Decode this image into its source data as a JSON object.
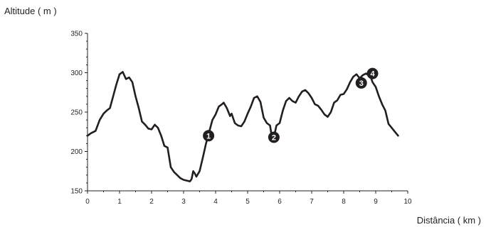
{
  "chart_data": {
    "type": "line",
    "title": "",
    "ylabel": "Altitude ( m )",
    "xlabel": "Distância ( km )",
    "xlim": [
      0,
      10
    ],
    "ylim": [
      150,
      350
    ],
    "x_ticks": [
      0,
      1,
      2,
      3,
      4,
      5,
      6,
      7,
      8,
      9,
      10
    ],
    "y_ticks": [
      150,
      200,
      250,
      300,
      350
    ],
    "grid": false,
    "series": [
      {
        "points": [
          [
            0.0,
            220
          ],
          [
            0.1,
            223
          ],
          [
            0.25,
            226
          ],
          [
            0.38,
            240
          ],
          [
            0.5,
            248
          ],
          [
            0.6,
            252
          ],
          [
            0.7,
            255
          ],
          [
            0.8,
            270
          ],
          [
            0.9,
            285
          ],
          [
            1.0,
            298
          ],
          [
            1.1,
            301
          ],
          [
            1.2,
            292
          ],
          [
            1.3,
            294
          ],
          [
            1.4,
            288
          ],
          [
            1.5,
            270
          ],
          [
            1.6,
            255
          ],
          [
            1.7,
            238
          ],
          [
            1.8,
            234
          ],
          [
            1.9,
            229
          ],
          [
            2.0,
            228
          ],
          [
            2.1,
            234
          ],
          [
            2.2,
            230
          ],
          [
            2.3,
            220
          ],
          [
            2.4,
            207
          ],
          [
            2.5,
            205
          ],
          [
            2.6,
            180
          ],
          [
            2.7,
            174
          ],
          [
            2.8,
            170
          ],
          [
            2.9,
            166
          ],
          [
            3.0,
            164
          ],
          [
            3.1,
            163
          ],
          [
            3.2,
            162
          ],
          [
            3.25,
            165
          ],
          [
            3.3,
            175
          ],
          [
            3.35,
            172
          ],
          [
            3.4,
            168
          ],
          [
            3.5,
            175
          ],
          [
            3.6,
            192
          ],
          [
            3.7,
            210
          ],
          [
            3.8,
            225
          ],
          [
            3.9,
            240
          ],
          [
            4.0,
            247
          ],
          [
            4.1,
            257
          ],
          [
            4.2,
            260
          ],
          [
            4.25,
            262
          ],
          [
            4.35,
            255
          ],
          [
            4.45,
            245
          ],
          [
            4.5,
            248
          ],
          [
            4.6,
            236
          ],
          [
            4.7,
            233
          ],
          [
            4.8,
            232
          ],
          [
            4.9,
            238
          ],
          [
            5.0,
            248
          ],
          [
            5.1,
            257
          ],
          [
            5.2,
            268
          ],
          [
            5.3,
            270
          ],
          [
            5.4,
            263
          ],
          [
            5.5,
            243
          ],
          [
            5.6,
            236
          ],
          [
            5.7,
            233
          ],
          [
            5.75,
            220
          ],
          [
            5.82,
            218
          ],
          [
            5.9,
            233
          ],
          [
            6.0,
            236
          ],
          [
            6.1,
            252
          ],
          [
            6.2,
            264
          ],
          [
            6.3,
            268
          ],
          [
            6.4,
            264
          ],
          [
            6.5,
            262
          ],
          [
            6.6,
            270
          ],
          [
            6.7,
            276
          ],
          [
            6.8,
            278
          ],
          [
            6.9,
            274
          ],
          [
            7.0,
            268
          ],
          [
            7.1,
            260
          ],
          [
            7.2,
            258
          ],
          [
            7.3,
            253
          ],
          [
            7.4,
            247
          ],
          [
            7.5,
            244
          ],
          [
            7.6,
            250
          ],
          [
            7.7,
            262
          ],
          [
            7.8,
            265
          ],
          [
            7.9,
            272
          ],
          [
            8.0,
            273
          ],
          [
            8.1,
            279
          ],
          [
            8.2,
            288
          ],
          [
            8.3,
            295
          ],
          [
            8.4,
            298
          ],
          [
            8.5,
            293
          ],
          [
            8.6,
            297
          ],
          [
            8.7,
            299
          ],
          [
            8.8,
            296
          ],
          [
            8.85,
            294
          ],
          [
            8.9,
            288
          ],
          [
            9.0,
            282
          ],
          [
            9.1,
            270
          ],
          [
            9.2,
            260
          ],
          [
            9.3,
            252
          ],
          [
            9.4,
            235
          ],
          [
            9.5,
            230
          ],
          [
            9.6,
            225
          ],
          [
            9.7,
            220
          ]
        ]
      }
    ],
    "markers": [
      {
        "label": "1",
        "x": 3.78,
        "y": 220
      },
      {
        "label": "2",
        "x": 5.82,
        "y": 218
      },
      {
        "label": "3",
        "x": 8.55,
        "y": 287
      },
      {
        "label": "4",
        "x": 8.9,
        "y": 299
      }
    ]
  }
}
